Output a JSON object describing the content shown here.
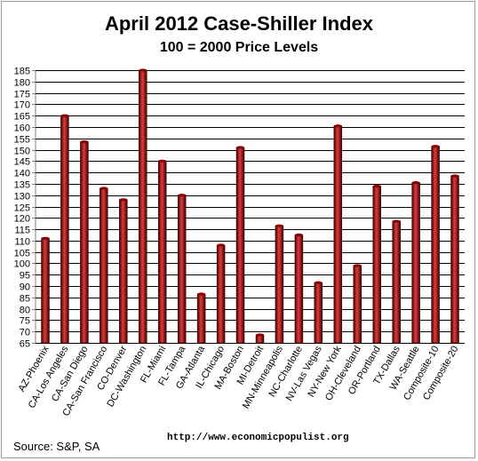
{
  "title": "April 2012 Case-Shiller Index",
  "subtitle": "100 = 2000 Price Levels",
  "source": "Source:  S&P, SA",
  "url": "http://www.economicpopulist.org",
  "colors": {
    "bar_light": "#e23a3a",
    "bar_mid": "#a80000",
    "bar_dark": "#3a0000",
    "grid": "#000000"
  },
  "chart_data": {
    "type": "bar",
    "categories": [
      "AZ-Phoenix",
      "CA-Los Angeles",
      "CA-San Diego",
      "CA-San Francisco",
      "CO-Denver",
      "DC-Washington",
      "FL-Miami",
      "FL-Tampa",
      "GA-Atlanta",
      "IL-Chicago",
      "MA-Boston",
      "MI-Detroit",
      "MN-Minneapolis",
      "NC-Charlotte",
      "NV-Las Vegas",
      "NY-New York",
      "OH-Cleveland",
      "OR-Portland",
      "TX-Dallas",
      "WA-Seattle",
      "Composite-10",
      "Composite-20"
    ],
    "values": [
      111,
      165,
      153.5,
      133,
      128,
      185,
      145,
      130,
      86.5,
      108,
      151,
      68.5,
      116.5,
      112.5,
      91.5,
      160.5,
      99,
      134,
      118.5,
      135.5,
      151.5,
      138.5
    ],
    "ylim": [
      65,
      185
    ],
    "yticks": [
      "65",
      "70",
      "75",
      "80",
      "85",
      "90",
      "95",
      "100",
      "105",
      "110",
      "115",
      "120",
      "125",
      "130",
      "135",
      "140",
      "145",
      "150",
      "155",
      "160",
      "165",
      "170",
      "175",
      "180",
      "185"
    ],
    "grid": true,
    "legend": "none"
  }
}
